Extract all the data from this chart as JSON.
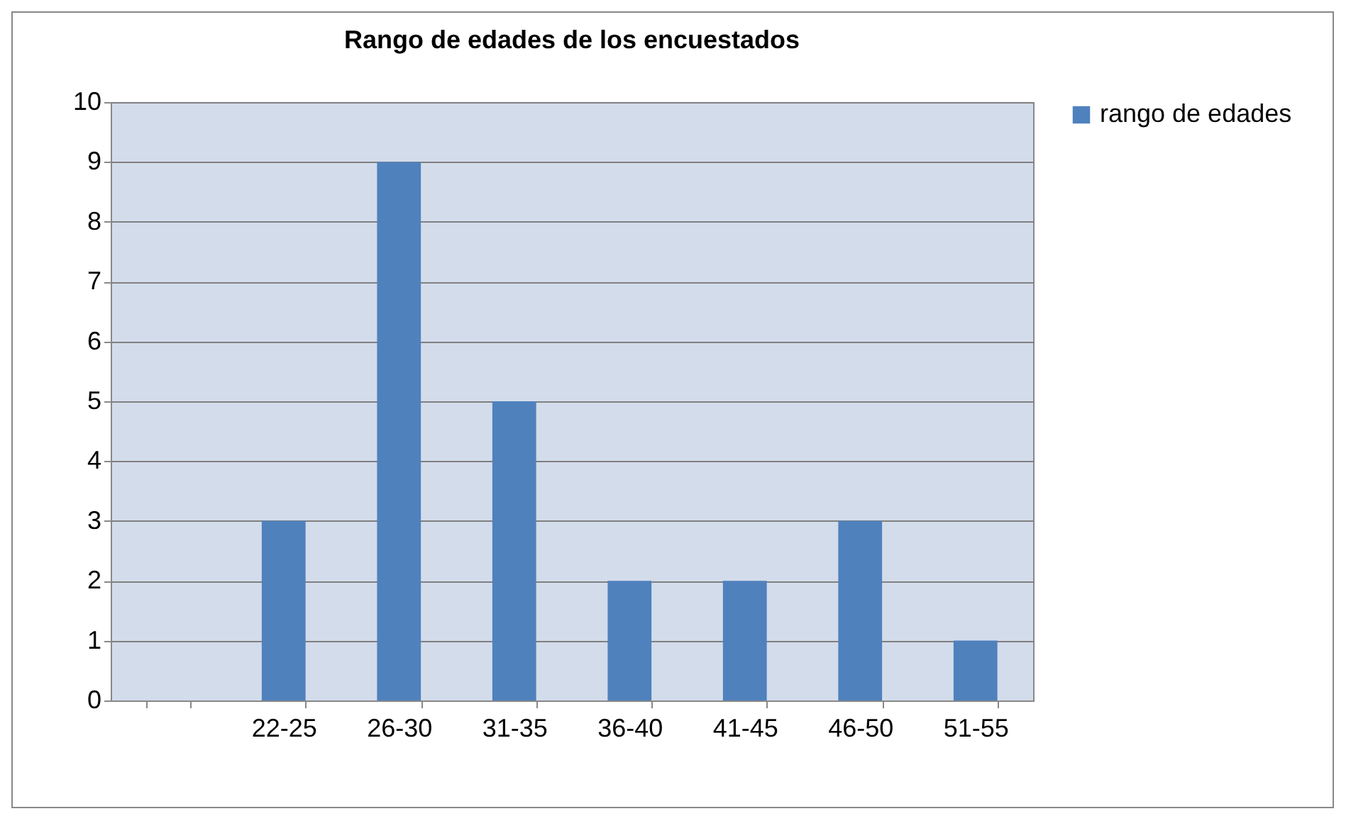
{
  "chart_data": {
    "type": "bar",
    "title": "Rango de edades de los encuestados",
    "categories": [
      null,
      "22-25",
      "26-30",
      "31-35",
      "36-40",
      "41-45",
      "46-50",
      "51-55"
    ],
    "series": [
      {
        "name": "rango de edades",
        "color": "#4f81bd",
        "values": [
          null,
          3,
          9,
          5,
          2,
          2,
          3,
          1
        ]
      }
    ],
    "ylim": [
      0,
      10
    ],
    "yticks": [
      0,
      1,
      2,
      3,
      4,
      5,
      6,
      7,
      8,
      9,
      10
    ],
    "grid": "y",
    "legend": "right"
  }
}
